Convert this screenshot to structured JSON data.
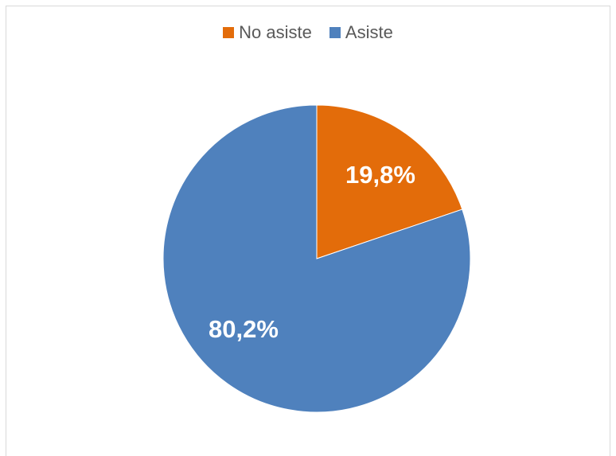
{
  "chart_data": {
    "type": "pie",
    "slices": [
      {
        "name": "No asiste",
        "value": 19.8,
        "label": "19,8%",
        "color": "#E36C0A"
      },
      {
        "name": "Asiste",
        "value": 80.2,
        "label": "80,2%",
        "color": "#4F81BD"
      }
    ],
    "start_angle_deg": 0,
    "direction": "clockwise",
    "legend_position": "top"
  }
}
